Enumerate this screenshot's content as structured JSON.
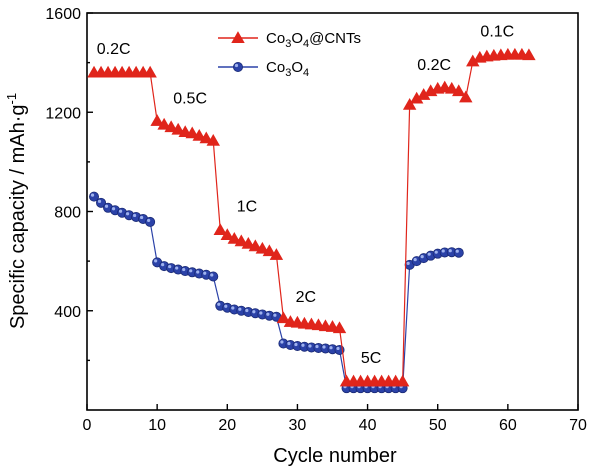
{
  "chart_data": {
    "type": "scatter",
    "xlabel": "Cycle  number",
    "ylabel": "Specific capacity / mAh·g",
    "ylabel_sup": "-1",
    "xlim": [
      0,
      70
    ],
    "ylim": [
      0,
      1600
    ],
    "xticks": [
      0,
      10,
      20,
      30,
      40,
      50,
      60,
      70
    ],
    "yticks": [
      400,
      800,
      1200,
      1600
    ],
    "legend_position": "top-center",
    "series": [
      {
        "name_parts": [
          "Co",
          "3",
          "O",
          "4",
          "@CNTs"
        ],
        "color": "#e0251b",
        "marker": "triangle",
        "x": [
          1,
          2,
          3,
          4,
          5,
          6,
          7,
          8,
          9,
          10,
          11,
          12,
          13,
          14,
          15,
          16,
          17,
          18,
          19,
          20,
          21,
          22,
          23,
          24,
          25,
          26,
          27,
          28,
          29,
          30,
          31,
          32,
          33,
          34,
          35,
          36,
          37,
          38,
          39,
          40,
          41,
          42,
          43,
          44,
          45,
          46,
          47,
          48,
          49,
          50,
          51,
          52,
          53,
          54,
          55,
          56,
          57,
          58,
          59,
          60,
          61,
          62,
          63
        ],
        "y": [
          1360,
          1360,
          1360,
          1360,
          1360,
          1360,
          1360,
          1360,
          1360,
          1165,
          1150,
          1140,
          1130,
          1120,
          1115,
          1105,
          1095,
          1085,
          725,
          705,
          690,
          680,
          670,
          660,
          650,
          640,
          625,
          370,
          355,
          352,
          348,
          345,
          342,
          338,
          335,
          330,
          115,
          115,
          115,
          115,
          115,
          115,
          115,
          115,
          115,
          1230,
          1255,
          1270,
          1285,
          1295,
          1300,
          1295,
          1285,
          1260,
          1405,
          1420,
          1425,
          1428,
          1430,
          1432,
          1432,
          1432,
          1430
        ]
      },
      {
        "name_parts": [
          "Co",
          "3",
          "O",
          "4"
        ],
        "color": "#2b42a8",
        "marker": "circle",
        "x": [
          1,
          2,
          3,
          4,
          5,
          6,
          7,
          8,
          9,
          10,
          11,
          12,
          13,
          14,
          15,
          16,
          17,
          18,
          19,
          20,
          21,
          22,
          23,
          24,
          25,
          26,
          27,
          28,
          29,
          30,
          31,
          32,
          33,
          34,
          35,
          36,
          37,
          38,
          39,
          40,
          41,
          42,
          43,
          44,
          45,
          46,
          47,
          48,
          49,
          50,
          51,
          52,
          53
        ],
        "y": [
          860,
          835,
          815,
          805,
          795,
          785,
          778,
          770,
          758,
          595,
          580,
          572,
          566,
          560,
          555,
          550,
          545,
          538,
          420,
          412,
          405,
          400,
          395,
          390,
          385,
          380,
          376,
          268,
          262,
          258,
          255,
          252,
          250,
          248,
          245,
          242,
          88,
          88,
          88,
          88,
          88,
          88,
          88,
          88,
          88,
          585,
          600,
          612,
          622,
          630,
          635,
          636,
          634
        ]
      }
    ],
    "annotations": [
      {
        "text": "0.2C",
        "x": 3.8,
        "y": 1435
      },
      {
        "text": "0.5C",
        "x": 14.7,
        "y": 1235
      },
      {
        "text": "1C",
        "x": 22.8,
        "y": 800
      },
      {
        "text": "2C",
        "x": 31.2,
        "y": 435
      },
      {
        "text": "5C",
        "x": 40.5,
        "y": 190
      },
      {
        "text": "0.2C",
        "x": 49.5,
        "y": 1370
      },
      {
        "text": "0.1C",
        "x": 58.5,
        "y": 1505
      }
    ]
  }
}
